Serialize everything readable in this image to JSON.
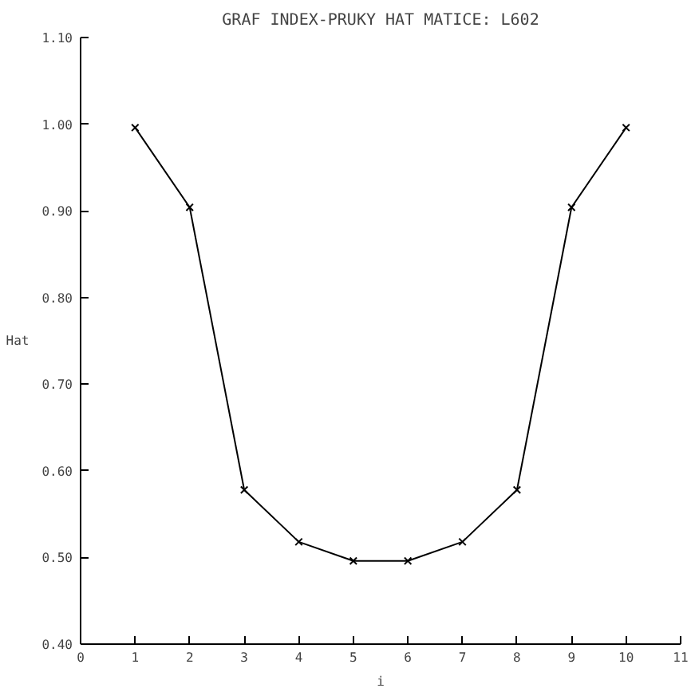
{
  "chart_data": {
    "type": "line",
    "title": "GRAF INDEX-PRUKY HAT MATICE: L602",
    "xlabel": "i",
    "ylabel": "Hat",
    "x": [
      1,
      2,
      3,
      4,
      5,
      6,
      7,
      8,
      9,
      10
    ],
    "series": [
      {
        "color": "#000000",
        "values": [
          0.996,
          0.904,
          0.578,
          0.518,
          0.496,
          0.496,
          0.518,
          0.578,
          0.904,
          0.996
        ]
      }
    ],
    "xlim": [
      0,
      11
    ],
    "xticks": [
      0,
      1,
      2,
      3,
      4,
      5,
      6,
      7,
      8,
      9,
      10,
      11
    ],
    "ylim": [
      0.4,
      1.1
    ],
    "yticks": [
      {
        "value": 0.4,
        "label": "0.40"
      },
      {
        "value": 0.5,
        "label": "0.50"
      },
      {
        "value": 0.6,
        "label": "0.60"
      },
      {
        "value": 0.7,
        "label": "0.70"
      },
      {
        "value": 0.8,
        "label": "0.80"
      },
      {
        "value": 0.9,
        "label": "0.90"
      },
      {
        "value": 1.0,
        "label": "1.00"
      },
      {
        "value": 1.1,
        "label": "1.10"
      }
    ],
    "grid": false,
    "marker": "cross",
    "line_style": "solid"
  }
}
